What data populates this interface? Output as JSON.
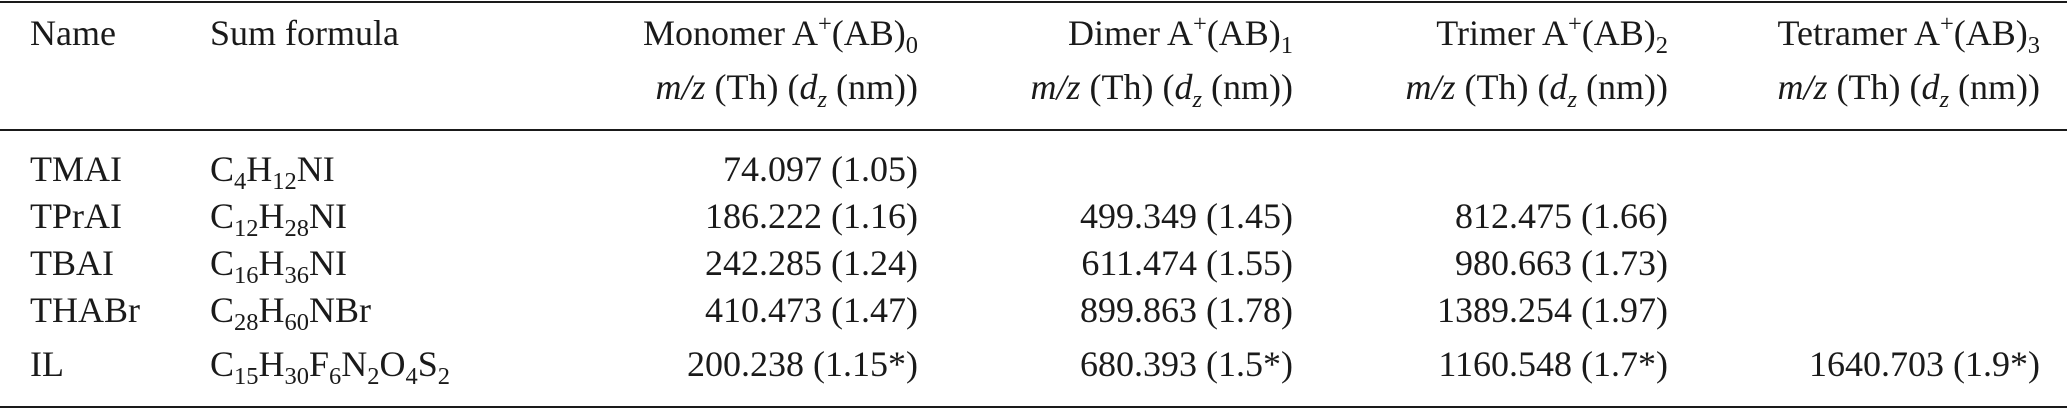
{
  "header": {
    "name": "Name",
    "formula": "Sum formula",
    "monomer": {
      "label": "Monomer A",
      "sup": "+",
      "mid": "(AB)",
      "sub": "0"
    },
    "dimer": {
      "label": "Dimer A",
      "sup": "+",
      "mid": "(AB)",
      "sub": "1"
    },
    "trimer": {
      "label": "Trimer A",
      "sup": "+",
      "mid": "(AB)",
      "sub": "2"
    },
    "tetramer": {
      "label": "Tetramer A",
      "sup": "+",
      "mid": "(AB)",
      "sub": "3"
    },
    "unit_line": {
      "mz": "m/z",
      "th": " (Th) (",
      "d": "d",
      "dsub": "z",
      "nm": " (nm))"
    }
  },
  "rows": [
    {
      "name": "TMAI",
      "formula": [
        [
          "C",
          "4"
        ],
        [
          "H",
          "12"
        ],
        [
          "NI",
          ""
        ]
      ],
      "monomer": "74.097 (1.05)",
      "dimer": "",
      "trimer": "",
      "tetramer": ""
    },
    {
      "name": "TPrAI",
      "formula": [
        [
          "C",
          "12"
        ],
        [
          "H",
          "28"
        ],
        [
          "NI",
          ""
        ]
      ],
      "monomer": "186.222 (1.16)",
      "dimer": "499.349 (1.45)",
      "trimer": "812.475 (1.66)",
      "tetramer": ""
    },
    {
      "name": "TBAI",
      "formula": [
        [
          "C",
          "16"
        ],
        [
          "H",
          "36"
        ],
        [
          "NI",
          ""
        ]
      ],
      "monomer": "242.285 (1.24)",
      "dimer": "611.474 (1.55)",
      "trimer": "980.663 (1.73)",
      "tetramer": ""
    },
    {
      "name": "THABr",
      "formula": [
        [
          "C",
          "28"
        ],
        [
          "H",
          "60"
        ],
        [
          "NBr",
          ""
        ]
      ],
      "monomer": "410.473 (1.47)",
      "dimer": "899.863 (1.78)",
      "trimer": "1389.254 (1.97)",
      "tetramer": ""
    },
    {
      "name": "IL",
      "formula": [
        [
          "C",
          "15"
        ],
        [
          "H",
          "30"
        ],
        [
          "F",
          "6"
        ],
        [
          "N",
          "2"
        ],
        [
          "O",
          "4"
        ],
        [
          "S",
          "2"
        ]
      ],
      "monomer": "200.238 (1.15*)",
      "dimer": "680.393 (1.5*)",
      "trimer": "1160.548 (1.7*)",
      "tetramer": "1640.703 (1.9*)"
    }
  ]
}
